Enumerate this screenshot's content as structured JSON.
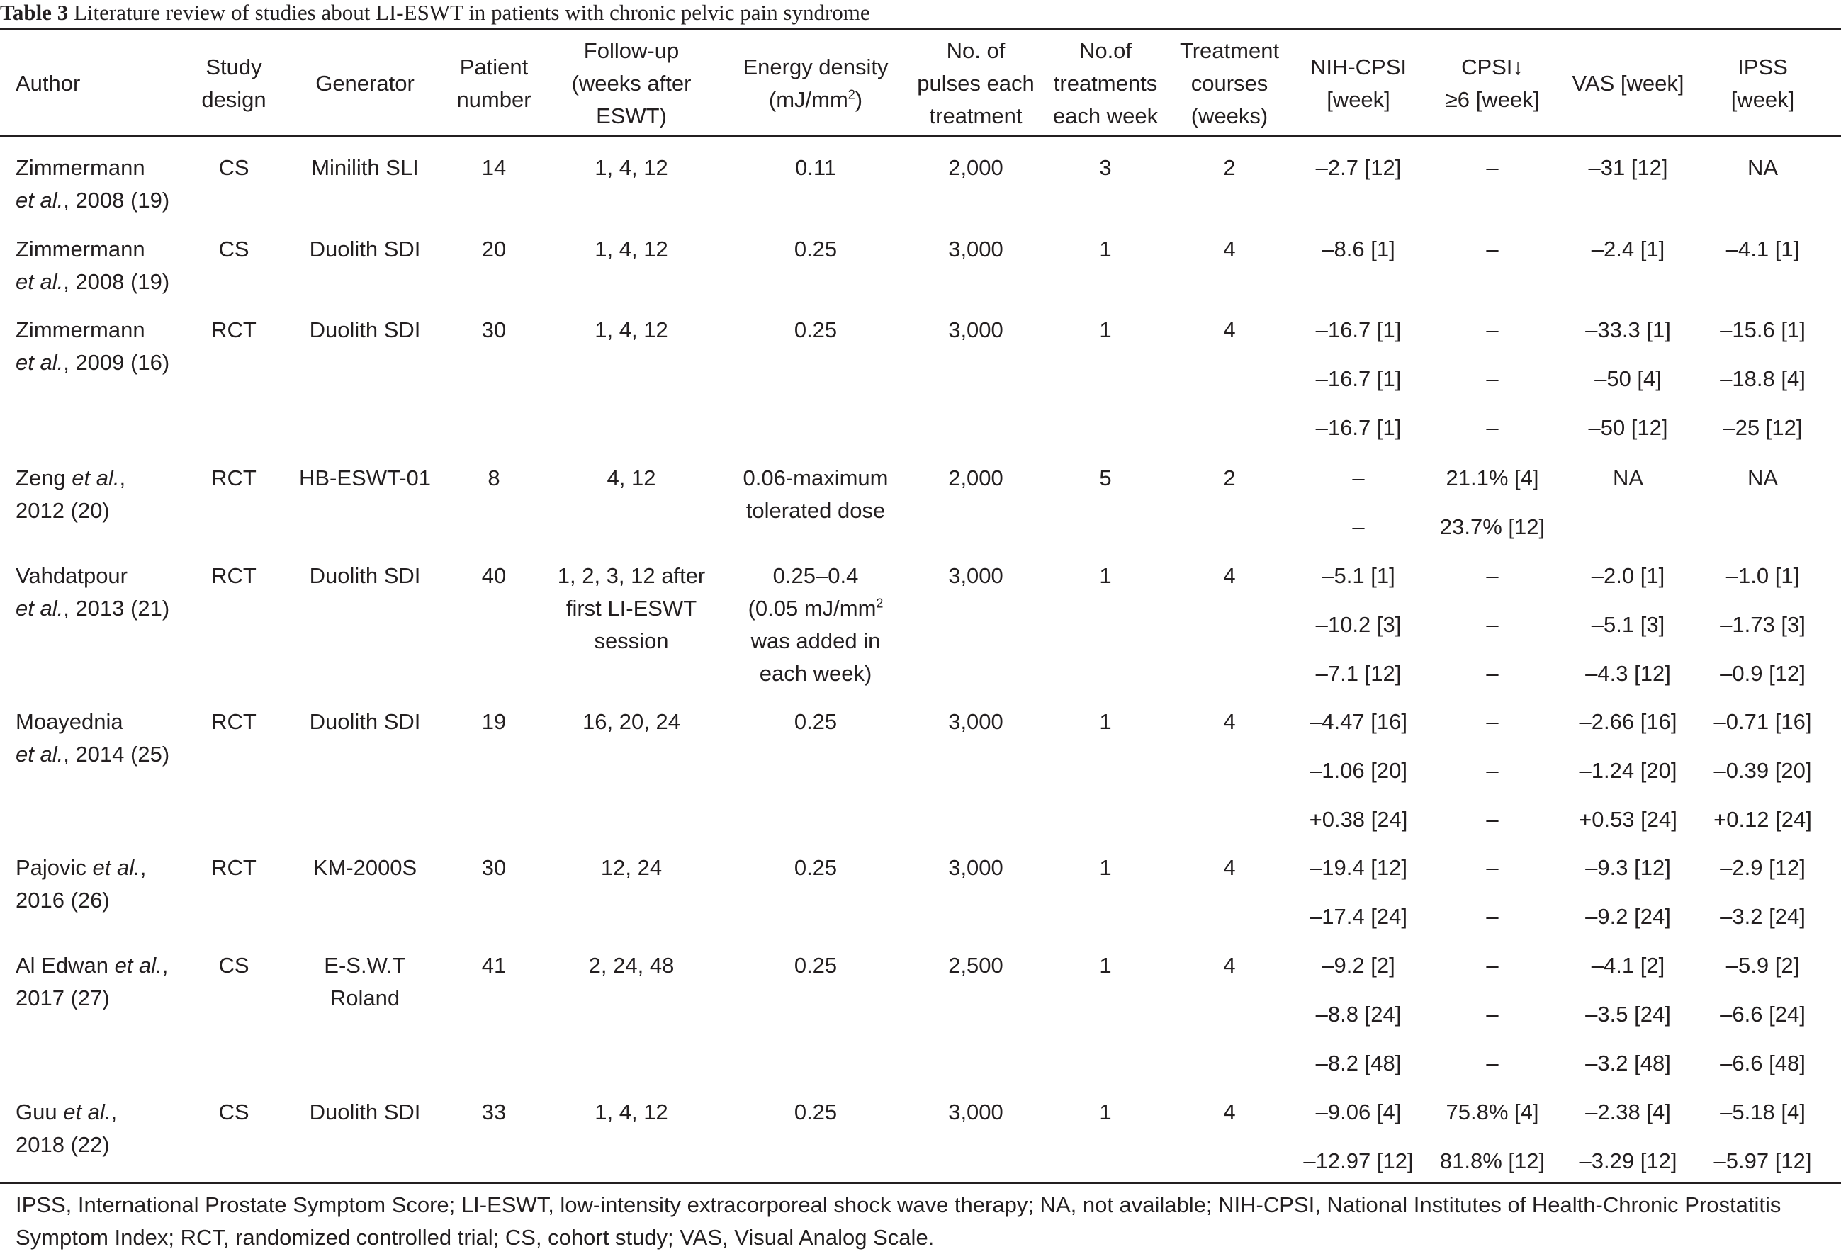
{
  "table": {
    "caption_label": "Table 3",
    "caption_text": "Literature review of studies about LI-ESWT in patients with chronic pelvic pain syndrome",
    "headers": [
      [
        "Author"
      ],
      [
        "Study",
        "design"
      ],
      [
        "Generator"
      ],
      [
        "Patient",
        "number"
      ],
      [
        "Follow-up",
        "(weeks after",
        "ESWT)"
      ],
      [
        "Energy density",
        "(mJ/mm²)"
      ],
      [
        "No. of",
        "pulses each",
        "treatment"
      ],
      [
        "No.of",
        "treatments",
        "each week"
      ],
      [
        "Treatment",
        "courses",
        "(weeks)"
      ],
      [
        "NIH-CPSI",
        "[week]"
      ],
      [
        "CPSI↓",
        "≥6 [week]"
      ],
      [
        "VAS [week]"
      ],
      [
        "IPSS",
        "[week]"
      ]
    ],
    "studies": [
      {
        "author": [
          "Zimmermann",
          "et al., 2008 (19)"
        ],
        "design": "CS",
        "generator": [
          "Minilith SLI"
        ],
        "patients": "14",
        "followup": [
          "1, 4, 12"
        ],
        "energy": [
          "0.11"
        ],
        "pulses": "2,000",
        "treatments_week": "3",
        "courses": "2",
        "rows": [
          {
            "nih": "–2.7 [12]",
            "cpsi": "–",
            "vas": "–31 [12]",
            "ipss": "NA"
          }
        ]
      },
      {
        "author": [
          "Zimmermann",
          "et al., 2008 (19)"
        ],
        "design": "CS",
        "generator": [
          "Duolith SDI"
        ],
        "patients": "20",
        "followup": [
          "1, 4, 12"
        ],
        "energy": [
          "0.25"
        ],
        "pulses": "3,000",
        "treatments_week": "1",
        "courses": "4",
        "rows": [
          {
            "nih": "–8.6 [1]",
            "cpsi": "–",
            "vas": "–2.4 [1]",
            "ipss": "–4.1 [1]"
          }
        ]
      },
      {
        "author": [
          "Zimmermann",
          "et al., 2009 (16)"
        ],
        "design": "RCT",
        "generator": [
          "Duolith SDI"
        ],
        "patients": "30",
        "followup": [
          "1, 4, 12"
        ],
        "energy": [
          "0.25"
        ],
        "pulses": "3,000",
        "treatments_week": "1",
        "courses": "4",
        "rows": [
          {
            "nih": "–16.7 [1]",
            "cpsi": "–",
            "vas": "–33.3 [1]",
            "ipss": "–15.6 [1]"
          },
          {
            "nih": "–16.7 [1]",
            "cpsi": "–",
            "vas": "–50 [4]",
            "ipss": "–18.8 [4]"
          },
          {
            "nih": "–16.7 [1]",
            "cpsi": "–",
            "vas": "–50 [12]",
            "ipss": "–25 [12]"
          }
        ]
      },
      {
        "author": [
          "Zeng et al.,",
          "2012 (20)"
        ],
        "design": "RCT",
        "generator": [
          "HB-ESWT-01"
        ],
        "patients": "8",
        "followup": [
          "4, 12"
        ],
        "energy": [
          "0.06-maximum",
          "tolerated dose"
        ],
        "pulses": "2,000",
        "treatments_week": "5",
        "courses": "2",
        "rows": [
          {
            "nih": "–",
            "cpsi": "21.1% [4]",
            "vas": "NA",
            "ipss": "NA"
          },
          {
            "nih": "–",
            "cpsi": "23.7% [12]",
            "vas": "",
            "ipss": ""
          }
        ]
      },
      {
        "author": [
          "Vahdatpour",
          "et al., 2013 (21)"
        ],
        "design": "RCT",
        "generator": [
          "Duolith SDI"
        ],
        "patients": "40",
        "followup": [
          "1, 2, 3, 12 after",
          "first LI-ESWT",
          "session"
        ],
        "energy": [
          "0.25–0.4",
          "(0.05 mJ/mm² ",
          "was added in",
          "each week)"
        ],
        "pulses": "3,000",
        "treatments_week": "1",
        "courses": "4",
        "rows": [
          {
            "nih": "–5.1 [1]",
            "cpsi": "–",
            "vas": "–2.0 [1]",
            "ipss": "–1.0 [1]"
          },
          {
            "nih": "–10.2 [3]",
            "cpsi": "–",
            "vas": "–5.1 [3]",
            "ipss": "–1.73 [3]"
          },
          {
            "nih": "–7.1 [12]",
            "cpsi": "–",
            "vas": "–4.3 [12]",
            "ipss": "–0.9 [12]"
          }
        ]
      },
      {
        "author": [
          "Moayednia",
          "et al., 2014 (25)"
        ],
        "design": "RCT",
        "generator": [
          "Duolith SDI"
        ],
        "patients": "19",
        "followup": [
          "16, 20, 24"
        ],
        "energy": [
          "0.25"
        ],
        "pulses": "3,000",
        "treatments_week": "1",
        "courses": "4",
        "rows": [
          {
            "nih": "–4.47 [16]",
            "cpsi": "–",
            "vas": "–2.66 [16]",
            "ipss": "–0.71 [16]"
          },
          {
            "nih": "–1.06 [20]",
            "cpsi": "–",
            "vas": "–1.24 [20]",
            "ipss": "–0.39 [20]"
          },
          {
            "nih": "+0.38 [24]",
            "cpsi": "–",
            "vas": "+0.53 [24]",
            "ipss": "+0.12 [24]"
          }
        ]
      },
      {
        "author": [
          "Pajovic et al.,",
          "2016 (26)"
        ],
        "design": "RCT",
        "generator": [
          "KM-2000S"
        ],
        "patients": "30",
        "followup": [
          "12, 24"
        ],
        "energy": [
          "0.25"
        ],
        "pulses": "3,000",
        "treatments_week": "1",
        "courses": "4",
        "rows": [
          {
            "nih": "–19.4 [12]",
            "cpsi": "–",
            "vas": "–9.3 [12]",
            "ipss": "–2.9 [12]"
          },
          {
            "nih": "–17.4 [24]",
            "cpsi": "–",
            "vas": "–9.2 [24]",
            "ipss": "–3.2 [24]"
          }
        ]
      },
      {
        "author": [
          "Al Edwan et al.,",
          "2017 (27)"
        ],
        "design": "CS",
        "generator": [
          "E-S.W.T",
          "Roland"
        ],
        "patients": "41",
        "followup": [
          "2, 24, 48"
        ],
        "energy": [
          "0.25"
        ],
        "pulses": "2,500",
        "treatments_week": "1",
        "courses": "4",
        "rows": [
          {
            "nih": "–9.2 [2]",
            "cpsi": "–",
            "vas": "–4.1 [2]",
            "ipss": "–5.9 [2]"
          },
          {
            "nih": "–8.8 [24]",
            "cpsi": "–",
            "vas": "–3.5 [24]",
            "ipss": "–6.6 [24]"
          },
          {
            "nih": "–8.2 [48]",
            "cpsi": "–",
            "vas": "–3.2 [48]",
            "ipss": "–6.6 [48]"
          }
        ]
      },
      {
        "author": [
          "Guu et al.,",
          "2018 (22)"
        ],
        "design": "CS",
        "generator": [
          "Duolith SDI"
        ],
        "patients": "33",
        "followup": [
          "1, 4, 12"
        ],
        "energy": [
          "0.25"
        ],
        "pulses": "3,000",
        "treatments_week": "1",
        "courses": "4",
        "rows": [
          {
            "nih": "–9.06 [4]",
            "cpsi": "75.8% [4]",
            "vas": "–2.38 [4]",
            "ipss": "–5.18 [4]"
          },
          {
            "nih": "–12.97 [12]",
            "cpsi": "81.8% [12]",
            "vas": "–3.29 [12]",
            "ipss": "–5.97 [12]"
          }
        ]
      }
    ],
    "footnote": "IPSS, International Prostate Symptom Score; LI-ESWT, low-intensity extracorporeal shock wave therapy; NA, not available; NIH-CPSI, National Institutes of Health-Chronic Prostatitis Symptom Index; RCT, randomized controlled trial; CS, cohort study; VAS, Visual Analog Scale."
  }
}
